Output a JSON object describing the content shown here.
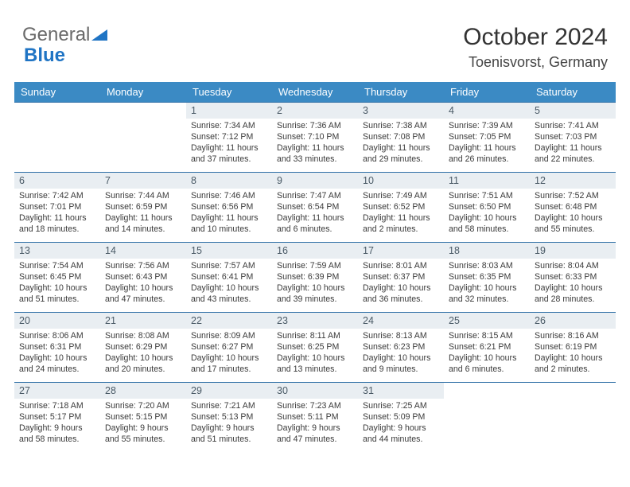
{
  "logo": {
    "text1": "General",
    "text2": "Blue"
  },
  "title": "October 2024",
  "location": "Toenisvorst, Germany",
  "colors": {
    "header_bg": "#3b8ac4",
    "header_text": "#ffffff",
    "daynum_bg": "#e9eef2",
    "cell_border": "#2f6fa6",
    "logo_gray": "#6a6a6a",
    "logo_blue": "#1f74c4"
  },
  "day_headers": [
    "Sunday",
    "Monday",
    "Tuesday",
    "Wednesday",
    "Thursday",
    "Friday",
    "Saturday"
  ],
  "weeks": [
    [
      {
        "n": "",
        "t": ""
      },
      {
        "n": "",
        "t": ""
      },
      {
        "n": "1",
        "t": "Sunrise: 7:34 AM\nSunset: 7:12 PM\nDaylight: 11 hours and 37 minutes."
      },
      {
        "n": "2",
        "t": "Sunrise: 7:36 AM\nSunset: 7:10 PM\nDaylight: 11 hours and 33 minutes."
      },
      {
        "n": "3",
        "t": "Sunrise: 7:38 AM\nSunset: 7:08 PM\nDaylight: 11 hours and 29 minutes."
      },
      {
        "n": "4",
        "t": "Sunrise: 7:39 AM\nSunset: 7:05 PM\nDaylight: 11 hours and 26 minutes."
      },
      {
        "n": "5",
        "t": "Sunrise: 7:41 AM\nSunset: 7:03 PM\nDaylight: 11 hours and 22 minutes."
      }
    ],
    [
      {
        "n": "6",
        "t": "Sunrise: 7:42 AM\nSunset: 7:01 PM\nDaylight: 11 hours and 18 minutes."
      },
      {
        "n": "7",
        "t": "Sunrise: 7:44 AM\nSunset: 6:59 PM\nDaylight: 11 hours and 14 minutes."
      },
      {
        "n": "8",
        "t": "Sunrise: 7:46 AM\nSunset: 6:56 PM\nDaylight: 11 hours and 10 minutes."
      },
      {
        "n": "9",
        "t": "Sunrise: 7:47 AM\nSunset: 6:54 PM\nDaylight: 11 hours and 6 minutes."
      },
      {
        "n": "10",
        "t": "Sunrise: 7:49 AM\nSunset: 6:52 PM\nDaylight: 11 hours and 2 minutes."
      },
      {
        "n": "11",
        "t": "Sunrise: 7:51 AM\nSunset: 6:50 PM\nDaylight: 10 hours and 58 minutes."
      },
      {
        "n": "12",
        "t": "Sunrise: 7:52 AM\nSunset: 6:48 PM\nDaylight: 10 hours and 55 minutes."
      }
    ],
    [
      {
        "n": "13",
        "t": "Sunrise: 7:54 AM\nSunset: 6:45 PM\nDaylight: 10 hours and 51 minutes."
      },
      {
        "n": "14",
        "t": "Sunrise: 7:56 AM\nSunset: 6:43 PM\nDaylight: 10 hours and 47 minutes."
      },
      {
        "n": "15",
        "t": "Sunrise: 7:57 AM\nSunset: 6:41 PM\nDaylight: 10 hours and 43 minutes."
      },
      {
        "n": "16",
        "t": "Sunrise: 7:59 AM\nSunset: 6:39 PM\nDaylight: 10 hours and 39 minutes."
      },
      {
        "n": "17",
        "t": "Sunrise: 8:01 AM\nSunset: 6:37 PM\nDaylight: 10 hours and 36 minutes."
      },
      {
        "n": "18",
        "t": "Sunrise: 8:03 AM\nSunset: 6:35 PM\nDaylight: 10 hours and 32 minutes."
      },
      {
        "n": "19",
        "t": "Sunrise: 8:04 AM\nSunset: 6:33 PM\nDaylight: 10 hours and 28 minutes."
      }
    ],
    [
      {
        "n": "20",
        "t": "Sunrise: 8:06 AM\nSunset: 6:31 PM\nDaylight: 10 hours and 24 minutes."
      },
      {
        "n": "21",
        "t": "Sunrise: 8:08 AM\nSunset: 6:29 PM\nDaylight: 10 hours and 20 minutes."
      },
      {
        "n": "22",
        "t": "Sunrise: 8:09 AM\nSunset: 6:27 PM\nDaylight: 10 hours and 17 minutes."
      },
      {
        "n": "23",
        "t": "Sunrise: 8:11 AM\nSunset: 6:25 PM\nDaylight: 10 hours and 13 minutes."
      },
      {
        "n": "24",
        "t": "Sunrise: 8:13 AM\nSunset: 6:23 PM\nDaylight: 10 hours and 9 minutes."
      },
      {
        "n": "25",
        "t": "Sunrise: 8:15 AM\nSunset: 6:21 PM\nDaylight: 10 hours and 6 minutes."
      },
      {
        "n": "26",
        "t": "Sunrise: 8:16 AM\nSunset: 6:19 PM\nDaylight: 10 hours and 2 minutes."
      }
    ],
    [
      {
        "n": "27",
        "t": "Sunrise: 7:18 AM\nSunset: 5:17 PM\nDaylight: 9 hours and 58 minutes."
      },
      {
        "n": "28",
        "t": "Sunrise: 7:20 AM\nSunset: 5:15 PM\nDaylight: 9 hours and 55 minutes."
      },
      {
        "n": "29",
        "t": "Sunrise: 7:21 AM\nSunset: 5:13 PM\nDaylight: 9 hours and 51 minutes."
      },
      {
        "n": "30",
        "t": "Sunrise: 7:23 AM\nSunset: 5:11 PM\nDaylight: 9 hours and 47 minutes."
      },
      {
        "n": "31",
        "t": "Sunrise: 7:25 AM\nSunset: 5:09 PM\nDaylight: 9 hours and 44 minutes."
      },
      {
        "n": "",
        "t": ""
      },
      {
        "n": "",
        "t": ""
      }
    ]
  ]
}
